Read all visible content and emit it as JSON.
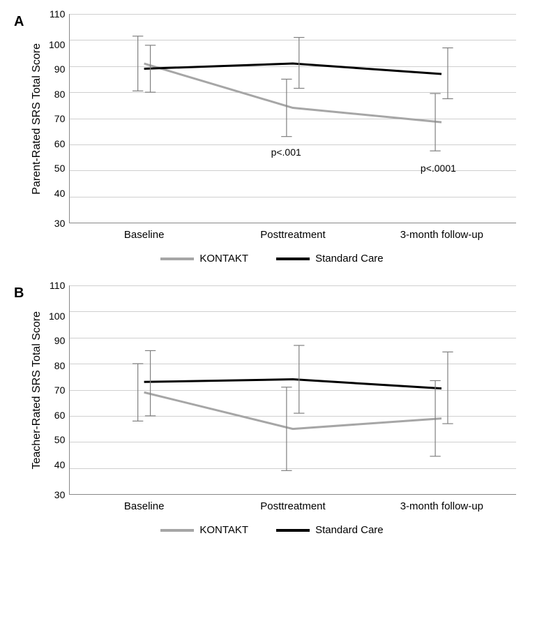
{
  "panels": {
    "A": {
      "label": "A",
      "ylabel": "Parent-Rated SRS Total Score",
      "ylim": [
        30,
        110
      ],
      "ytick_step": 10,
      "categories": [
        "Baseline",
        "Posttreatment",
        "3-month follow-up"
      ],
      "series": {
        "kontakt": {
          "label": "KONTAKT",
          "color": "#a6a6a6",
          "line_width": 3,
          "values": [
            91,
            74,
            68.5
          ],
          "err_low": [
            10.5,
            11,
            11
          ],
          "err_high": [
            10.5,
            11,
            11
          ]
        },
        "standard": {
          "label": "Standard Care",
          "color": "#000000",
          "line_width": 3,
          "values": [
            89,
            91,
            87
          ],
          "err_low": [
            9,
            9.5,
            9.5
          ],
          "err_high": [
            9,
            10,
            10
          ]
        }
      },
      "annotations": [
        {
          "text": "p<.001",
          "x_index": 1,
          "y": 57,
          "dx": -10
        },
        {
          "text": "p<.0001",
          "x_index": 2,
          "y": 51,
          "dx": -5
        }
      ]
    },
    "B": {
      "label": "B",
      "ylabel": "Teacher-Rated SRS Total Score",
      "ylim": [
        30,
        110
      ],
      "ytick_step": 10,
      "categories": [
        "Baseline",
        "Posttreatment",
        "3-month follow-up"
      ],
      "series": {
        "kontakt": {
          "label": "KONTAKT",
          "color": "#a6a6a6",
          "line_width": 3,
          "values": [
            69,
            55,
            59
          ],
          "err_low": [
            11,
            16,
            14.5
          ],
          "err_high": [
            11,
            16,
            14.5
          ]
        },
        "standard": {
          "label": "Standard Care",
          "color": "#000000",
          "line_width": 3,
          "values": [
            73,
            74,
            70.5
          ],
          "err_low": [
            13,
            13,
            13.5
          ],
          "err_high": [
            12,
            13,
            14
          ]
        }
      },
      "annotations": []
    }
  },
  "grid_color": "#cfcfcf",
  "axis_color": "#808080",
  "background_color": "#ffffff",
  "error_bar_color": "#808080",
  "error_bar_width": 1.2,
  "error_cap_width": 10,
  "font": {
    "axis_label_size": 16,
    "tick_size": 14,
    "annot_size": 14,
    "legend_size": 15,
    "panel_label_size": 20
  }
}
